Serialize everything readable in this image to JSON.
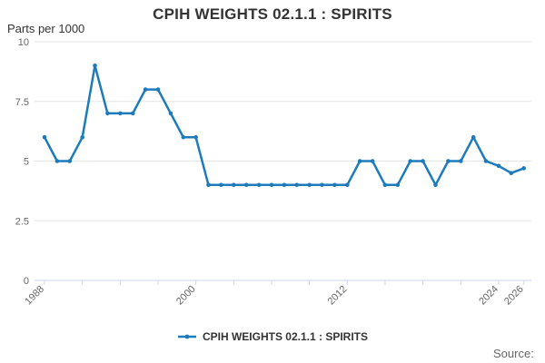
{
  "header": {
    "title": "CPIH WEIGHTS 02.1.1 : SPIRITS",
    "units_label": "Parts per 1000"
  },
  "legend": {
    "label": "CPIH WEIGHTS 02.1.1 : SPIRITS"
  },
  "footer": {
    "source_label": "Source:"
  },
  "colors": {
    "series": "#1d7bbb",
    "grid": "#e6e6e6",
    "axis": "#ccd6eb",
    "tick_label": "#666666",
    "text": "#333333"
  },
  "chart_data": {
    "type": "line",
    "title": "CPIH WEIGHTS 02.1.1 : SPIRITS",
    "xlabel": "",
    "ylabel": "Parts per 1000",
    "x": [
      1988,
      1989,
      1990,
      1991,
      1992,
      1993,
      1994,
      1995,
      1996,
      1997,
      1998,
      1999,
      2000,
      2001,
      2002,
      2003,
      2004,
      2005,
      2006,
      2007,
      2008,
      2009,
      2010,
      2011,
      2012,
      2013,
      2014,
      2015,
      2016,
      2017,
      2018,
      2019,
      2020,
      2021,
      2022,
      2023,
      2024,
      2025,
      2026
    ],
    "series": [
      {
        "name": "CPIH WEIGHTS 02.1.1 : SPIRITS",
        "values": [
          6,
          5,
          5,
          6,
          9,
          7,
          7,
          7,
          8,
          8,
          7,
          6,
          6,
          4,
          4,
          4,
          4,
          4,
          4,
          4,
          4,
          4,
          4,
          4,
          4,
          5,
          5,
          4,
          4,
          5,
          5,
          4,
          5,
          5,
          6,
          5,
          4.8,
          4.5,
          4.7
        ]
      }
    ],
    "ylim": [
      0,
      10
    ],
    "yticks": [
      0,
      2.5,
      5,
      7.5,
      10
    ],
    "ytick_labels": [
      "0",
      "2.5",
      "5",
      "7.5",
      "10"
    ],
    "xtick_years": [
      1988,
      1991,
      1994,
      1997,
      2000,
      2003,
      2006,
      2009,
      2012,
      2015,
      2018,
      2021,
      2024,
      2026
    ],
    "xtick_label_years": [
      1988,
      2000,
      2012,
      2024,
      2026
    ],
    "xtick_labels": [
      "1988",
      "2000",
      "2012",
      "2024",
      "2026"
    ],
    "grid": true,
    "legend_position": "bottom"
  }
}
